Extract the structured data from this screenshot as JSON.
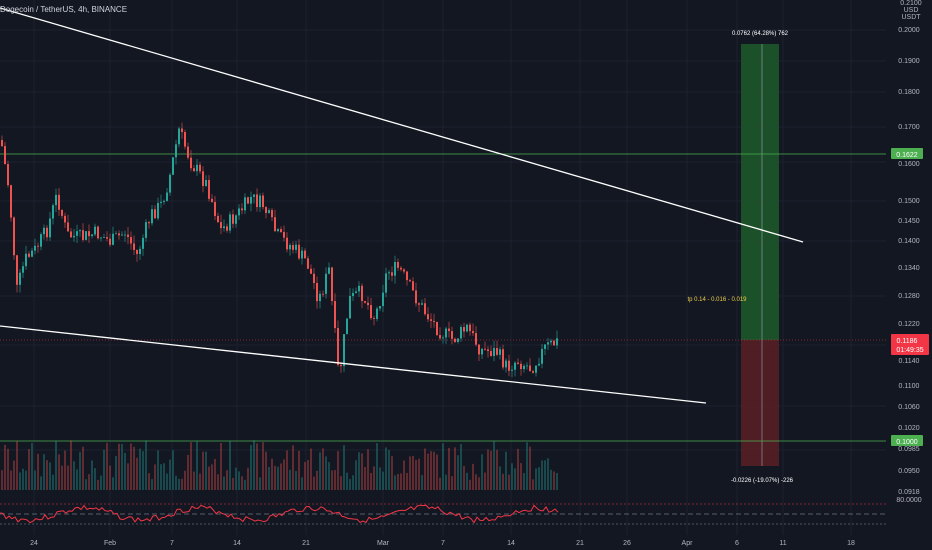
{
  "header": {
    "title": "Dogecoin / TetherUS, 4h, BINANCE"
  },
  "price_axis": {
    "top_label": "0.2100",
    "currency": "USD",
    "currency_secondary": "USDT",
    "ticks": [
      "0.2000",
      "0.1900",
      "0.1800",
      "0.1700",
      "0.1600",
      "0.1500",
      "0.1450",
      "0.1400",
      "0.1340",
      "0.1280",
      "0.1220",
      "0.1140",
      "0.1100",
      "0.1060",
      "0.1020",
      "0.0985",
      "0.0950",
      "0.0918"
    ]
  },
  "indicator_axis": {
    "label": "80.0000"
  },
  "time_axis": {
    "ticks": [
      "24",
      "Feb",
      "7",
      "14",
      "21",
      "Mar",
      "7",
      "14",
      "21",
      "26",
      "Apr",
      "6",
      "11",
      "18"
    ]
  },
  "levels": {
    "upper": {
      "label": "0.1622",
      "color": "#4caf50"
    },
    "current": {
      "label": "0.1186",
      "countdown": "01:49:35",
      "color": "#f23645"
    },
    "lower": {
      "label": "0.1000",
      "color": "#4caf50"
    }
  },
  "position": {
    "target_label": "0.0762 (64.28%) 762",
    "stop_label": "-0.0226 (-19.07%) -226",
    "note": "tp 0.14 - 0.016 - 0.019",
    "profit_color": "#1e5a2a",
    "loss_color": "#5a1e25"
  },
  "colors": {
    "up": "#26a69a",
    "down": "#ef5350",
    "trendline": "#ffffff",
    "rsi": "#f23645"
  }
}
